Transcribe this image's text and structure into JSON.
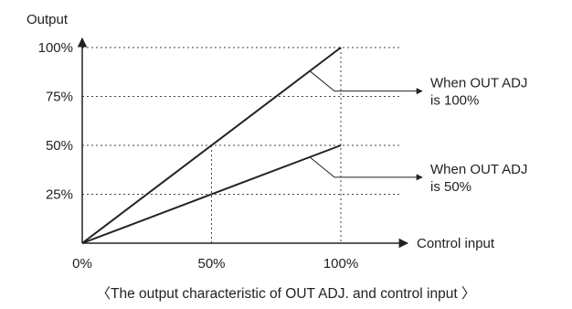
{
  "chart_data": {
    "type": "line",
    "ylabel": "Output",
    "xlabel": "Control input",
    "x_ticks": [
      "0%",
      "50%",
      "100%"
    ],
    "y_ticks": [
      "25%",
      "50%",
      "75%",
      "100%"
    ],
    "x_tick_values": [
      0,
      50,
      100
    ],
    "y_tick_values": [
      25,
      50,
      75,
      100
    ],
    "xlim": [
      0,
      100
    ],
    "ylim": [
      0,
      100
    ],
    "grid": "dotted",
    "series": [
      {
        "label_lines": [
          "When OUT ADJ",
          "is 100%"
        ],
        "x": [
          0,
          100
        ],
        "y": [
          0,
          100
        ],
        "color": "#222222"
      },
      {
        "label_lines": [
          "When OUT ADJ",
          "is 50%"
        ],
        "x": [
          0,
          100
        ],
        "y": [
          0,
          50
        ],
        "color": "#222222"
      }
    ],
    "caption": "〈The output characteristic of OUT ADJ. and control input 〉"
  }
}
